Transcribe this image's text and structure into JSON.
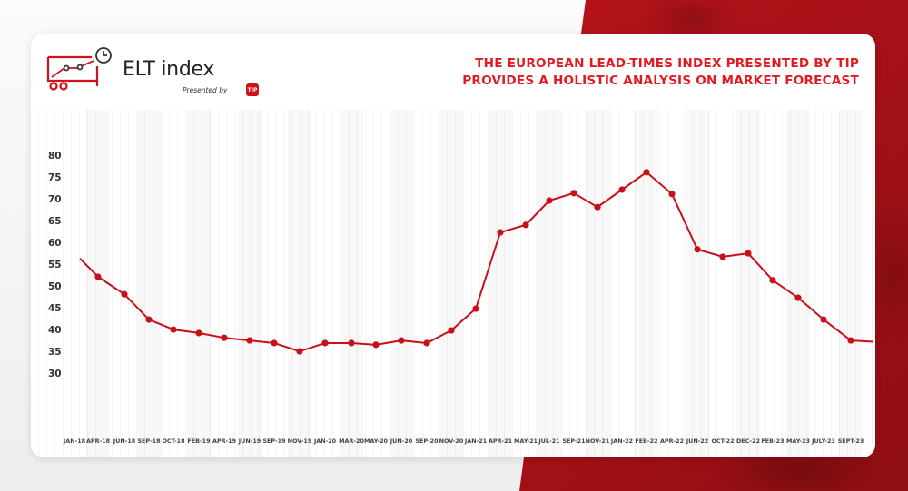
{
  "header": {
    "logo_title": "ELT index",
    "logo_subtitle": "Presented by",
    "logo_badge": "TIP",
    "headline_line1": "THE EUROPEAN LEAD-TIMES INDEX PRESENTED BY TIP",
    "headline_line2": "PROVIDES A HOLISTIC ANALYSIS ON MARKET FORECAST"
  },
  "colors": {
    "brand_red": "#e01b22",
    "line_red": "#c8101a",
    "background_red": "#b3131a"
  },
  "y_ticks": [
    "80",
    "75",
    "70",
    "65",
    "60",
    "55",
    "50",
    "45",
    "40",
    "35",
    "30"
  ],
  "x_ticks": [
    "JAN-18",
    "APR-18",
    "JUN-18",
    "SEP-18",
    "OCT-18",
    "FEB-19",
    "APR-19",
    "JUN-19",
    "SEP-19",
    "NOV-19",
    "JAN-20",
    "MAR-20",
    "MAY-20",
    "JUN-20",
    "SEP-20",
    "NOV-20",
    "JAN-21",
    "APR-21",
    "MAY-21",
    "JUL-21",
    "SEP-21",
    "NOV-21",
    "JAN-22",
    "FEB-22",
    "APR-22",
    "JUN-22",
    "OCT-22",
    "DEC-22",
    "FEB-23",
    "MAY-23",
    "JULY-23",
    "SEPT-23"
  ],
  "chart_data": {
    "type": "line",
    "title": "ELT index",
    "subtitle": "The European Lead-Times Index presented by TIP provides a holistic analysis on market forecast",
    "xlabel": "",
    "ylabel": "",
    "ylim": [
      30,
      80
    ],
    "yticks": [
      30,
      35,
      40,
      45,
      50,
      55,
      60,
      65,
      70,
      75,
      80
    ],
    "grid": "vertical stripes",
    "legend": "none",
    "categories": [
      "JAN-18",
      "APR-18",
      "JUN-18",
      "SEP-18",
      "OCT-18",
      "FEB-19",
      "APR-19",
      "JUN-19",
      "SEP-19",
      "NOV-19",
      "JAN-20",
      "MAR-20",
      "MAY-20",
      "JUN-20",
      "SEP-20",
      "NOV-20",
      "JAN-21",
      "APR-21",
      "MAY-21",
      "JUL-21",
      "SEP-21",
      "NOV-21",
      "JAN-22",
      "FEB-22",
      "APR-22",
      "JUN-22",
      "OCT-22",
      "DEC-22",
      "FEB-23",
      "MAY-23",
      "JULY-23",
      "SEPT-23"
    ],
    "series": [
      {
        "name": "ELT index",
        "values": [
          56.7,
          52.5,
          48.5,
          42.7,
          40.4,
          39.6,
          38.5,
          37.9,
          37.3,
          35.4,
          37.3,
          37.3,
          36.9,
          37.9,
          37.3,
          40.2,
          45.2,
          62.7,
          64.4,
          70.0,
          71.7,
          68.5,
          72.5,
          76.5,
          71.5,
          58.8,
          57.1,
          57.9,
          51.7,
          47.7,
          42.7,
          37.9
        ]
      }
    ]
  }
}
